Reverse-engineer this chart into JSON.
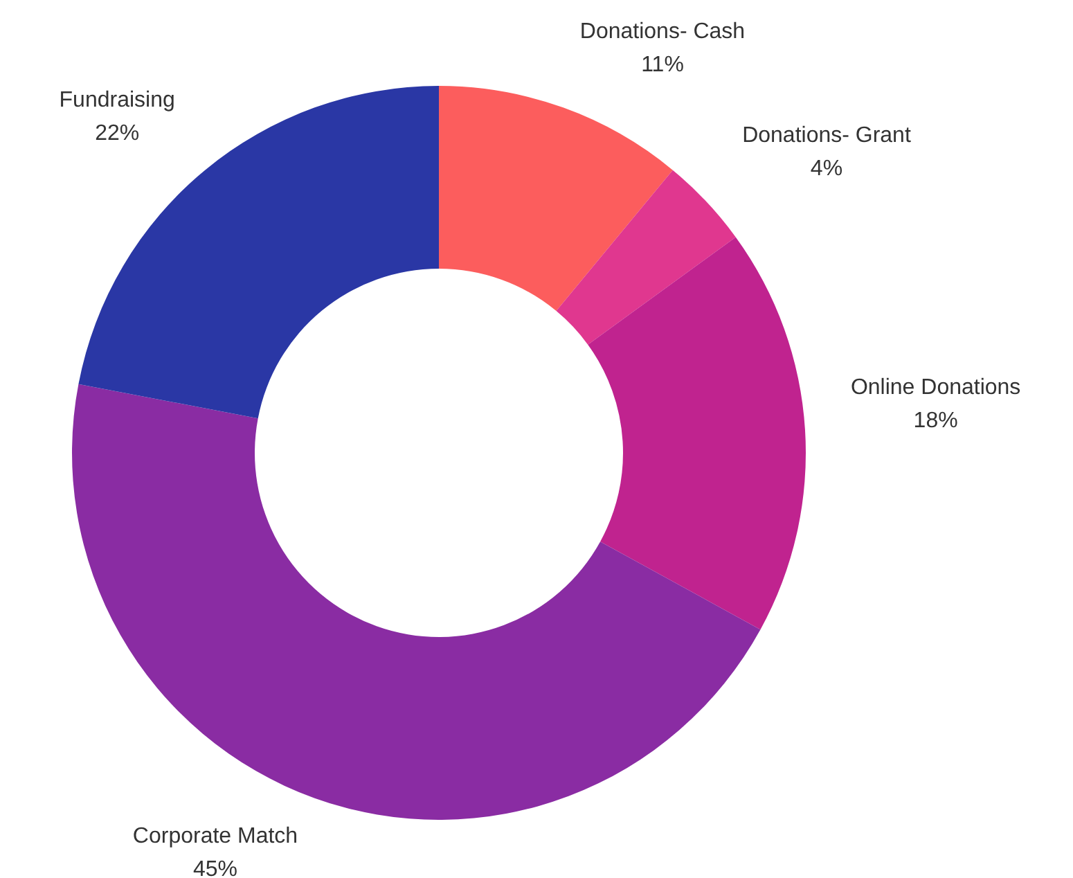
{
  "chart_data": {
    "type": "donut",
    "categories": [
      "Donations- Cash",
      "Donations- Grant",
      "Online Donations",
      "Corporate Match",
      "Fundraising"
    ],
    "values": [
      11,
      4,
      18,
      45,
      22
    ],
    "value_labels": [
      "11%",
      "4%",
      "18%",
      "45%",
      "22%"
    ],
    "colors": [
      "#fc5d5d",
      "#e0378f",
      "#c0238f",
      "#8a2ca3",
      "#2a37a5"
    ]
  }
}
